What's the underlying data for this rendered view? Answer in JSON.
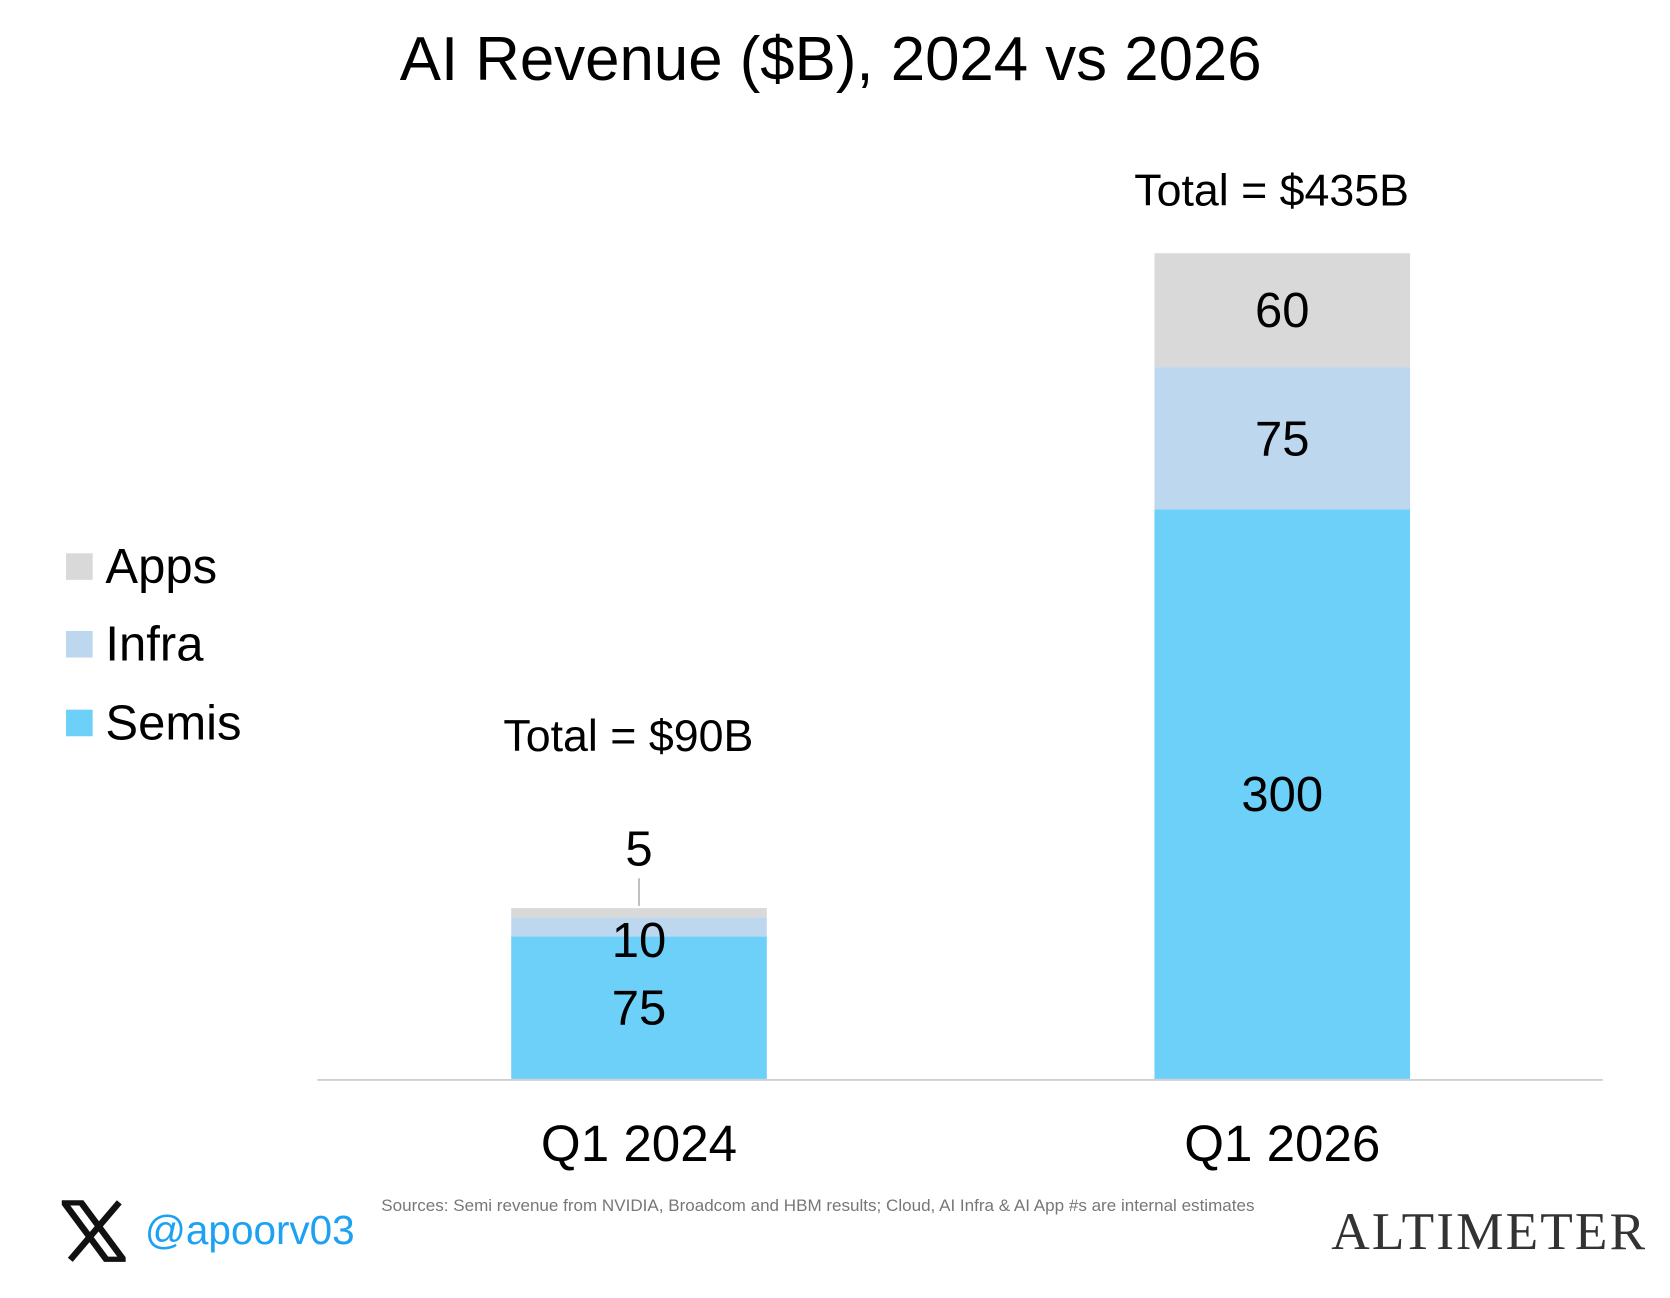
{
  "chart_data": {
    "type": "bar",
    "stacked": true,
    "title": "AI Revenue ($B), 2024 vs 2026",
    "categories": [
      "Q1 2024",
      "Q1 2026"
    ],
    "series": [
      {
        "name": "Semis",
        "values": [
          75,
          300
        ],
        "color": "#6DD0F9"
      },
      {
        "name": "Infra",
        "values": [
          10,
          75
        ],
        "color": "#BDD7EE"
      },
      {
        "name": "Apps",
        "values": [
          5,
          60
        ],
        "color": "#D9D9D9"
      }
    ],
    "totals": [
      "Total = $90B",
      "Total = $435B"
    ],
    "ylim": [
      0,
      435
    ],
    "grid": false,
    "legend_position": "left",
    "xlabel": "",
    "ylabel": ""
  },
  "footer": {
    "sources": "Sources: Semi revenue from NVIDIA, Broadcom and HBM results; Cloud, AI Infra & AI App #s are internal estimates",
    "handle": "@apoorv03",
    "logo": "ALTIMETER"
  }
}
